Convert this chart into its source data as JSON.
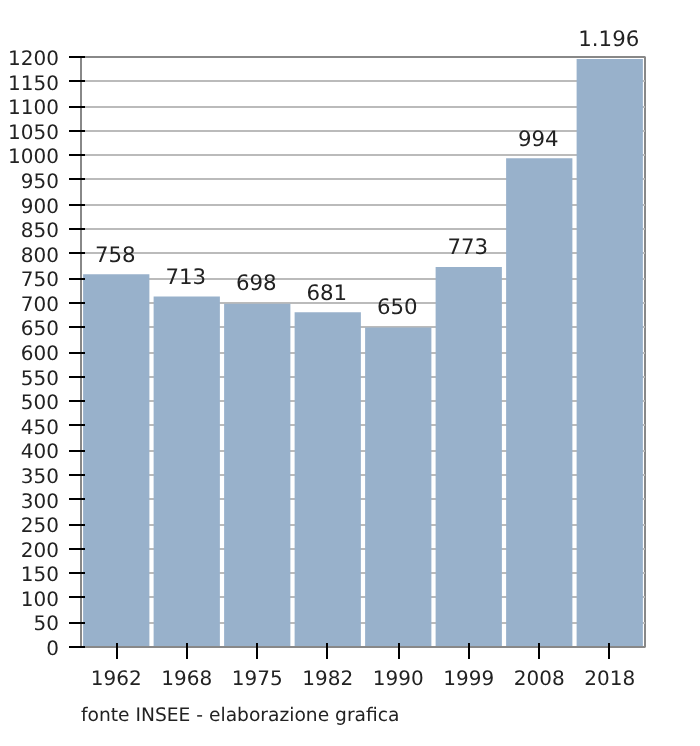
{
  "chart_data": {
    "type": "bar",
    "categories": [
      "1962",
      "1968",
      "1975",
      "1982",
      "1990",
      "1999",
      "2008",
      "2018"
    ],
    "values": [
      758,
      713,
      698,
      681,
      650,
      773,
      994,
      1196
    ],
    "value_labels": [
      "758",
      "713",
      "698",
      "681",
      "650",
      "773",
      "994",
      "1.196"
    ],
    "color": "#98b1cb",
    "ylim": [
      0,
      1200
    ],
    "yticks": [
      0,
      50,
      100,
      150,
      200,
      250,
      300,
      350,
      400,
      450,
      500,
      550,
      600,
      650,
      700,
      750,
      800,
      850,
      900,
      950,
      1000,
      1050,
      1100,
      1150,
      1200
    ],
    "grid": "y",
    "annotations": [
      "fonte INSEE - elaborazione grafica"
    ]
  }
}
